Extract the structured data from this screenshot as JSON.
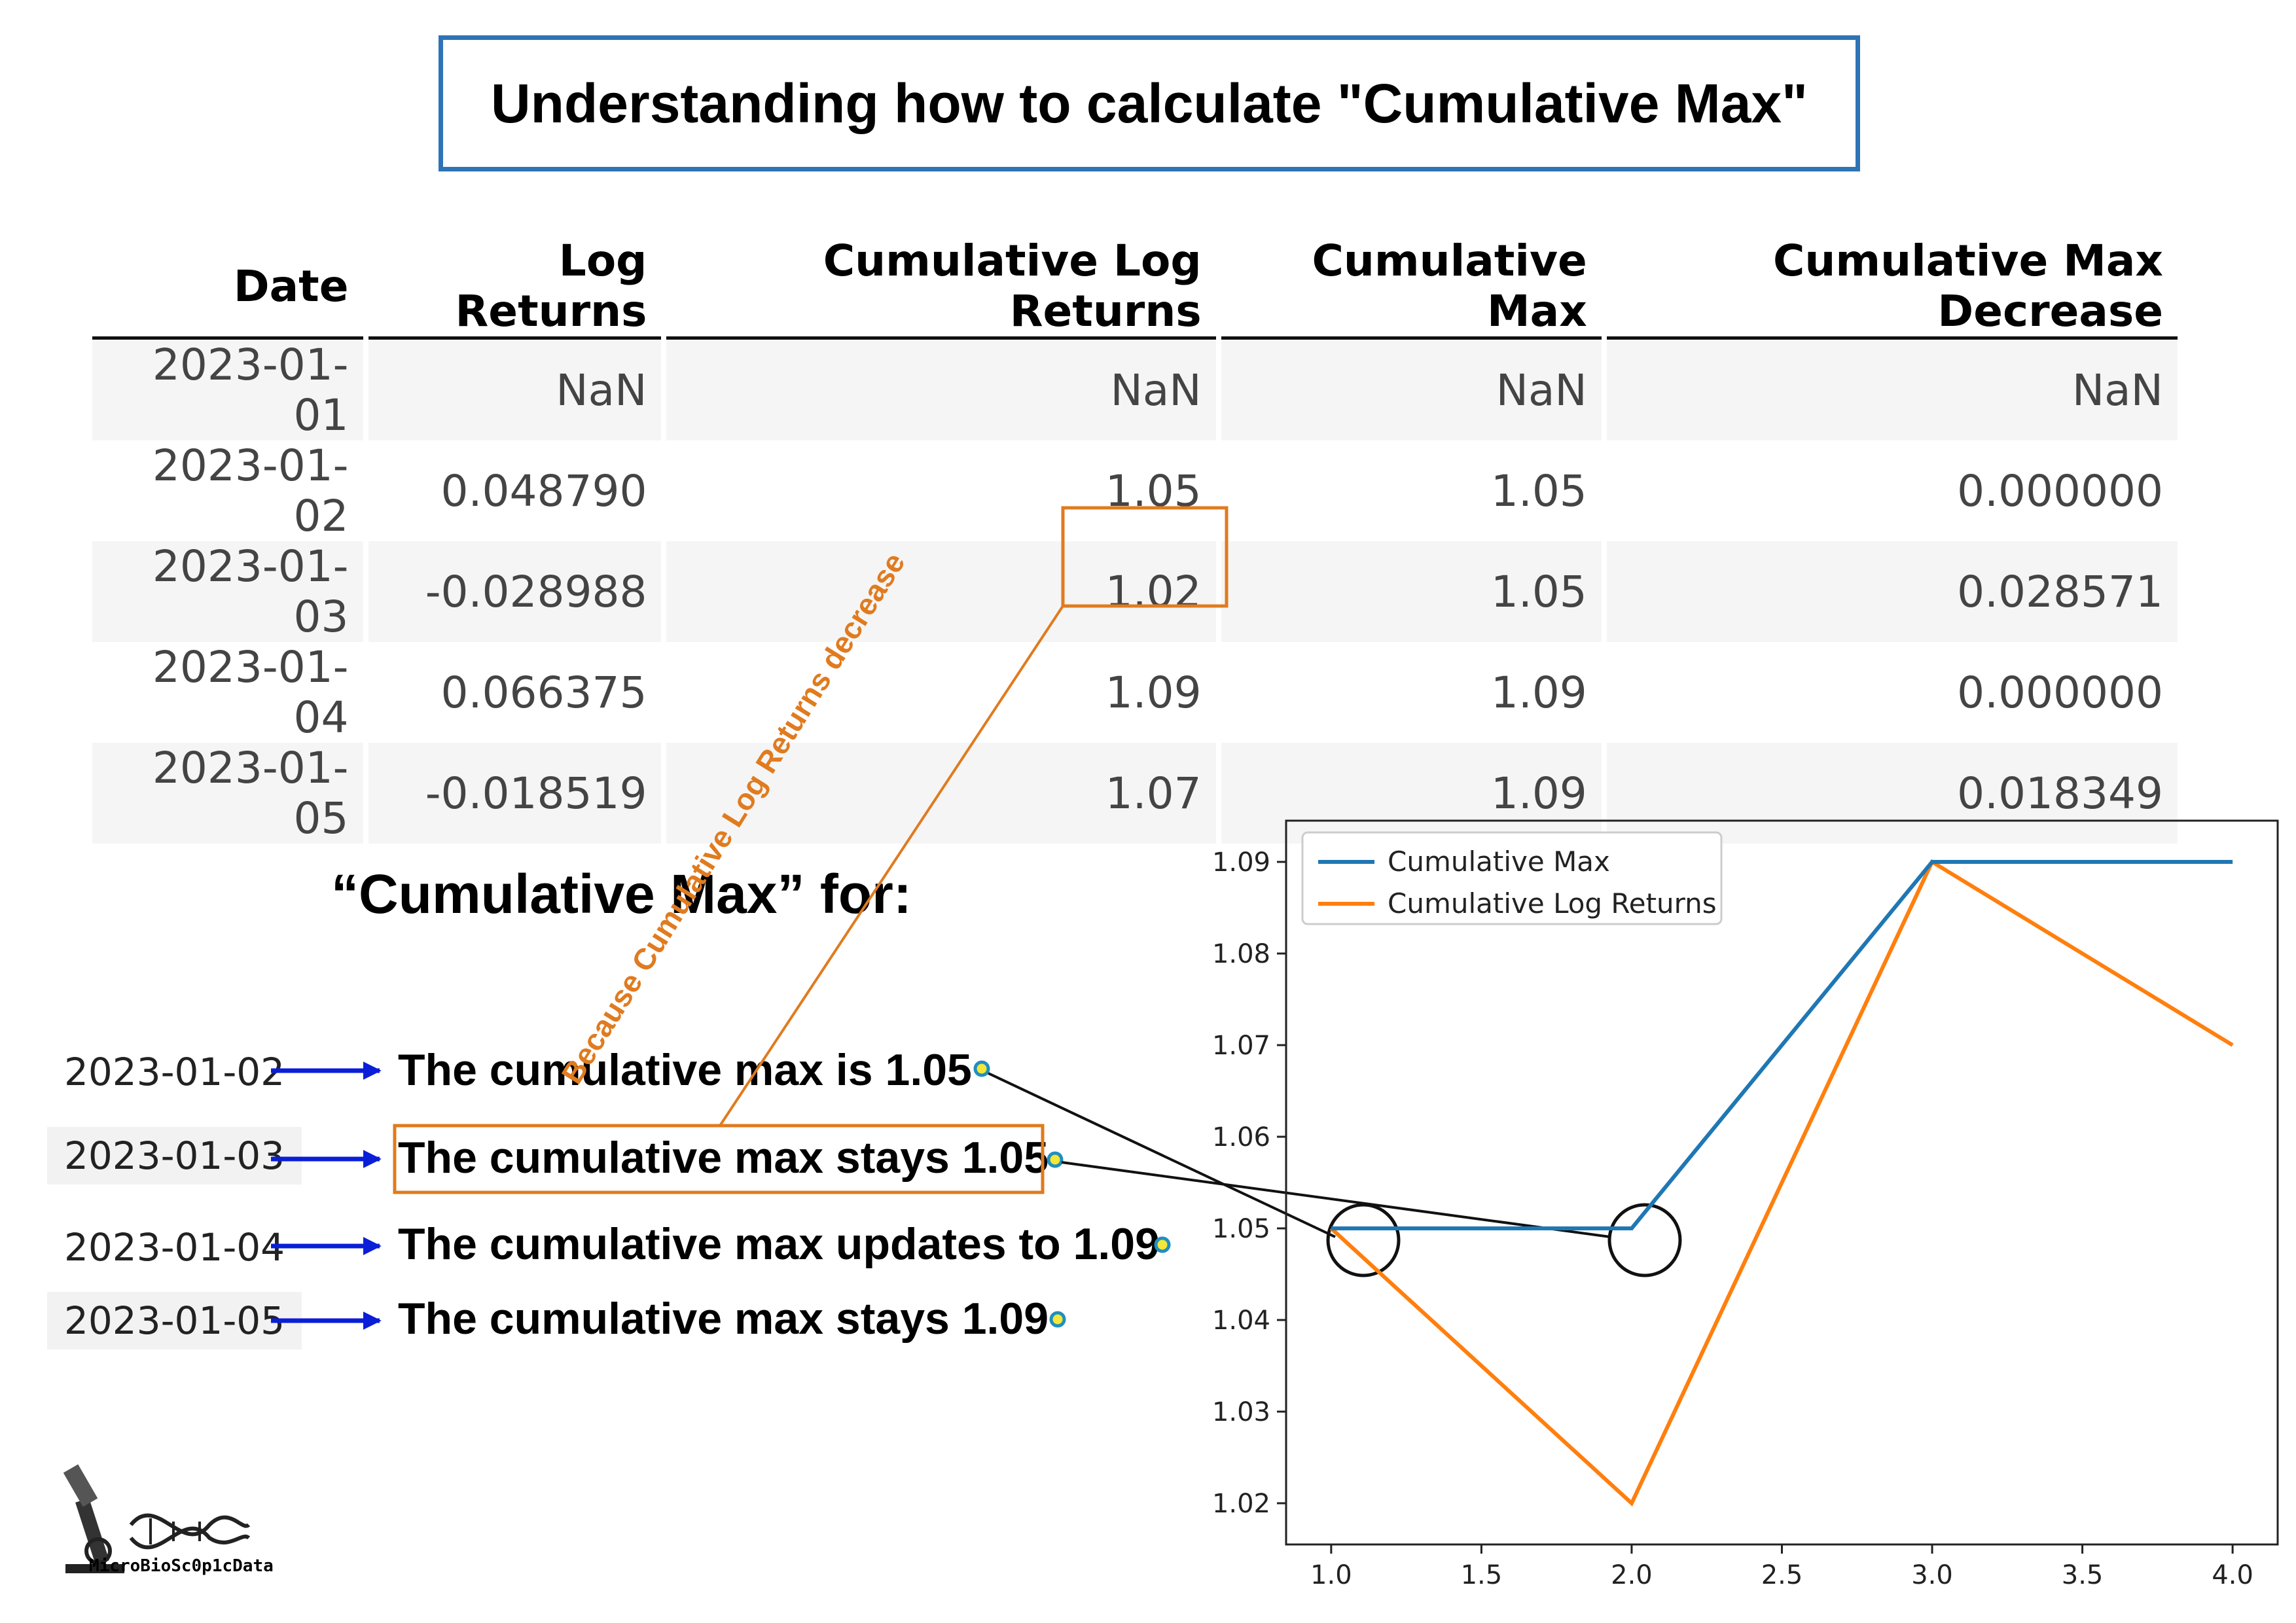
{
  "title": "Understanding how to calculate \"Cumulative Max\"",
  "table": {
    "headers": [
      "Date",
      "Log Returns",
      "Cumulative Log Returns",
      "Cumulative Max",
      "Cumulative Max Decrease"
    ],
    "rows": [
      {
        "date": "2023-01-01",
        "log_returns": "NaN",
        "cum_log_returns": "NaN",
        "cum_max": "NaN",
        "cum_max_decrease": "NaN"
      },
      {
        "date": "2023-01-02",
        "log_returns": "0.048790",
        "cum_log_returns": "1.05",
        "cum_max": "1.05",
        "cum_max_decrease": "0.000000"
      },
      {
        "date": "2023-01-03",
        "log_returns": "-0.028988",
        "cum_log_returns": "1.02",
        "cum_max": "1.05",
        "cum_max_decrease": "0.028571"
      },
      {
        "date": "2023-01-04",
        "log_returns": "0.066375",
        "cum_log_returns": "1.09",
        "cum_max": "1.09",
        "cum_max_decrease": "0.000000"
      },
      {
        "date": "2023-01-05",
        "log_returns": "-0.018519",
        "cum_log_returns": "1.07",
        "cum_max": "1.09",
        "cum_max_decrease": "0.018349"
      }
    ]
  },
  "annotation": "Because Cumulative Log Returns decrease",
  "subtitle": "“Cumulative Max” for:",
  "explanations": [
    {
      "date": "2023-01-02",
      "text": "The cumulative max is 1.05"
    },
    {
      "date": "2023-01-03",
      "text": "The cumulative max stays 1.05"
    },
    {
      "date": "2023-01-04",
      "text": "The cumulative max updates to 1.09"
    },
    {
      "date": "2023-01-05",
      "text": "The cumulative max stays 1.09"
    }
  ],
  "logo_text": "MicroBioSc0p1cData",
  "colors": {
    "title_border": "#2e74b5",
    "highlight": "#e07b1f",
    "arrow": "#0a1ed8",
    "dot_fill": "#f5e63a",
    "dot_stroke": "#1f8fbf",
    "cum_max": "#1f77b4",
    "cum_log": "#ff7f0e"
  },
  "chart_data": {
    "type": "line",
    "series": [
      {
        "name": "Cumulative Max",
        "x": [
          1.0,
          2.0,
          3.0,
          4.0
        ],
        "values": [
          1.05,
          1.05,
          1.09,
          1.09
        ]
      },
      {
        "name": "Cumulative Log Returns",
        "x": [
          1.0,
          2.0,
          3.0,
          4.0
        ],
        "values": [
          1.05,
          1.02,
          1.09,
          1.07
        ]
      }
    ],
    "xlim": [
      0.85,
      4.15
    ],
    "ylim": [
      1.0155,
      1.0945
    ],
    "xticks": [
      "1.0",
      "1.5",
      "2.0",
      "2.5",
      "3.0",
      "3.5",
      "4.0"
    ],
    "yticks": [
      "1.02",
      "1.03",
      "1.04",
      "1.05",
      "1.06",
      "1.07",
      "1.08",
      "1.09"
    ],
    "legend": "top-left",
    "grid": false,
    "title": "",
    "xlabel": "",
    "ylabel": ""
  }
}
